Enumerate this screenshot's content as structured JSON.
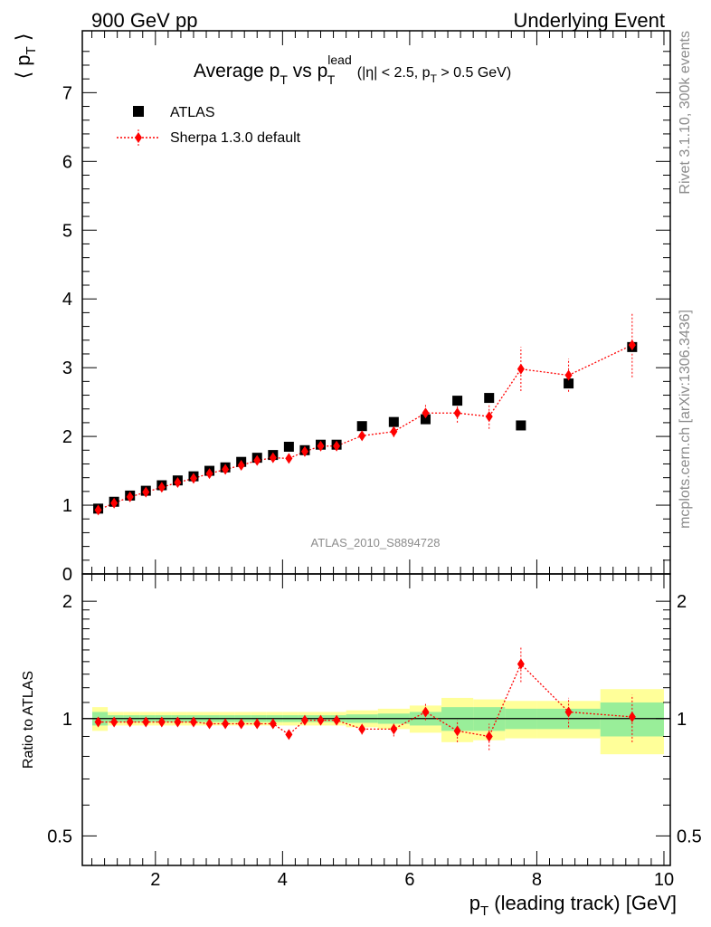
{
  "header": {
    "left": "900 GeV pp",
    "right": "Underlying Event"
  },
  "side_text": {
    "rivet": "Rivet 3.1.10,  300k events",
    "mcplots": "mcplots.cern.ch [arXiv:1306.3436]"
  },
  "main_title": {
    "prefix": "Average p",
    "sub_t": "T",
    "vs": " vs p",
    "sup_lead": "lead",
    "sub_t2": "T",
    "cut_a": " (|η| < 2.5, p",
    "cut_sub": "T",
    "cut_b": " > 0.5 GeV)"
  },
  "analysis_id": "ATLAS_2010_S8894728",
  "colors": {
    "data": "#000000",
    "mc": "#ff0000",
    "band_inner": "#99ee99",
    "band_outer": "#ffff99"
  },
  "chart_data": [
    {
      "type": "scatter",
      "panel": "main",
      "ylabel": "⟨ p T ⟩",
      "ylim": [
        0,
        7.9
      ],
      "xlim": [
        0.85,
        10.1
      ],
      "yticks": [
        "0",
        "1",
        "2",
        "3",
        "4",
        "5",
        "6",
        "7"
      ],
      "legend_placement": "top-left",
      "series": [
        {
          "name": "ATLAS",
          "marker": "square",
          "x": [
            1.1,
            1.35,
            1.6,
            1.85,
            2.1,
            2.35,
            2.6,
            2.85,
            3.1,
            3.35,
            3.6,
            3.85,
            4.1,
            4.35,
            4.6,
            4.85,
            5.25,
            5.75,
            6.25,
            6.75,
            7.25,
            7.75,
            8.5,
            9.5
          ],
          "y": [
            0.95,
            1.05,
            1.14,
            1.21,
            1.29,
            1.36,
            1.42,
            1.5,
            1.55,
            1.63,
            1.69,
            1.73,
            1.85,
            1.8,
            1.88,
            1.88,
            2.15,
            2.21,
            2.25,
            2.52,
            2.56,
            2.16,
            2.77,
            3.3
          ]
        },
        {
          "name": "Sherpa 1.3.0 default",
          "marker": "diamond",
          "x": [
            1.1,
            1.35,
            1.6,
            1.85,
            2.1,
            2.35,
            2.6,
            2.85,
            3.1,
            3.35,
            3.6,
            3.85,
            4.1,
            4.35,
            4.6,
            4.85,
            5.25,
            5.75,
            6.25,
            6.75,
            7.25,
            7.75,
            8.5,
            9.5
          ],
          "y": [
            0.93,
            1.03,
            1.12,
            1.19,
            1.26,
            1.33,
            1.39,
            1.46,
            1.52,
            1.58,
            1.65,
            1.69,
            1.68,
            1.78,
            1.86,
            1.86,
            2.01,
            2.07,
            2.34,
            2.34,
            2.29,
            2.98,
            2.89,
            3.33
          ],
          "yerr": [
            0.02,
            0.02,
            0.02,
            0.02,
            0.02,
            0.02,
            0.02,
            0.02,
            0.02,
            0.02,
            0.03,
            0.03,
            0.03,
            0.04,
            0.05,
            0.05,
            0.06,
            0.08,
            0.12,
            0.14,
            0.18,
            0.32,
            0.24,
            0.47
          ]
        }
      ]
    },
    {
      "type": "scatter",
      "panel": "ratio",
      "xlabel": "p T (leading track) [GeV]",
      "ylabel": "Ratio to ATLAS",
      "ylim": [
        0.42,
        2.35
      ],
      "xlim": [
        0.85,
        10.1
      ],
      "xticks": [
        "2",
        "4",
        "6",
        "8",
        "10"
      ],
      "yticks": [
        "0.5",
        "1",
        "2"
      ],
      "series": [
        {
          "name": "Sherpa 1.3.0 default",
          "x": [
            1.1,
            1.35,
            1.6,
            1.85,
            2.1,
            2.35,
            2.6,
            2.85,
            3.1,
            3.35,
            3.6,
            3.85,
            4.1,
            4.35,
            4.6,
            4.85,
            5.25,
            5.75,
            6.25,
            6.75,
            7.25,
            7.75,
            8.5,
            9.5
          ],
          "y": [
            0.98,
            0.98,
            0.98,
            0.98,
            0.98,
            0.98,
            0.98,
            0.97,
            0.97,
            0.97,
            0.97,
            0.97,
            0.91,
            0.99,
            0.99,
            0.99,
            0.94,
            0.94,
            1.04,
            0.93,
            0.9,
            1.38,
            1.04,
            1.01
          ],
          "yerr": [
            0.01,
            0.01,
            0.01,
            0.01,
            0.01,
            0.01,
            0.01,
            0.01,
            0.01,
            0.01,
            0.01,
            0.01,
            0.02,
            0.02,
            0.02,
            0.02,
            0.03,
            0.04,
            0.05,
            0.06,
            0.07,
            0.14,
            0.09,
            0.14
          ]
        }
      ],
      "bands": {
        "edges": [
          0.85,
          1.25,
          1.5,
          1.75,
          2.0,
          2.25,
          2.5,
          2.75,
          3.0,
          3.25,
          3.5,
          3.75,
          4.0,
          4.25,
          4.5,
          4.75,
          5.0,
          5.5,
          6.0,
          6.5,
          7.0,
          7.5,
          8.0,
          9.0,
          10.0
        ],
        "inner": [
          0.04,
          0.02,
          0.02,
          0.02,
          0.02,
          0.02,
          0.02,
          0.02,
          0.02,
          0.02,
          0.02,
          0.02,
          0.02,
          0.02,
          0.02,
          0.02,
          0.025,
          0.03,
          0.04,
          0.07,
          0.07,
          0.06,
          0.06,
          0.1
        ],
        "outer": [
          0.07,
          0.04,
          0.04,
          0.04,
          0.04,
          0.04,
          0.04,
          0.04,
          0.04,
          0.04,
          0.04,
          0.04,
          0.04,
          0.04,
          0.04,
          0.04,
          0.05,
          0.06,
          0.08,
          0.13,
          0.12,
          0.11,
          0.11,
          0.19
        ]
      }
    }
  ]
}
